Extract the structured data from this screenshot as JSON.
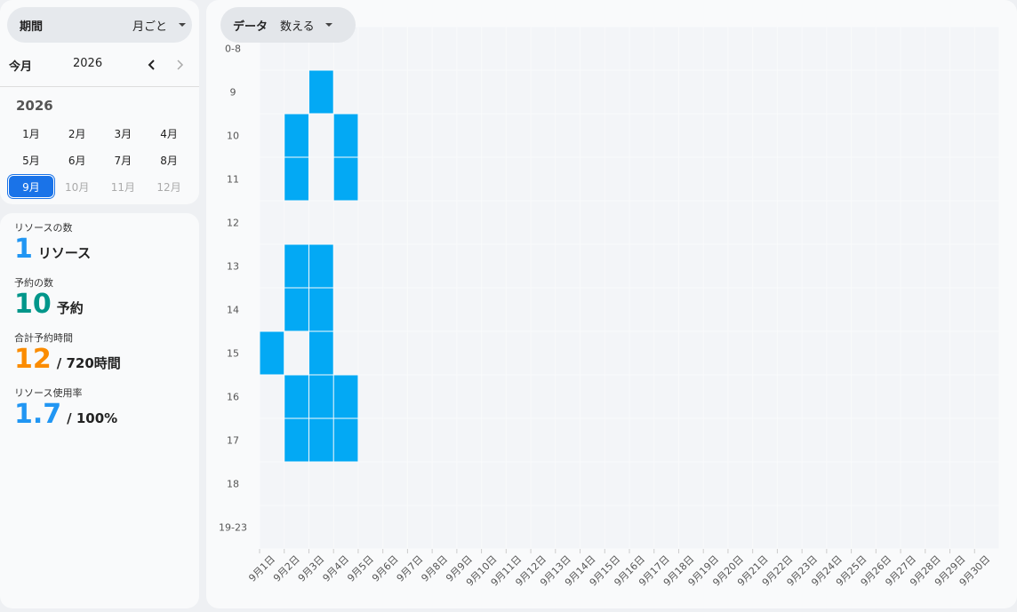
{
  "period": {
    "label": "期間",
    "value": "月ごと"
  },
  "nav": {
    "label": "今月",
    "year": "2026"
  },
  "calendar": {
    "year": "2026",
    "months": [
      {
        "label": "1月",
        "state": "normal"
      },
      {
        "label": "2月",
        "state": "normal"
      },
      {
        "label": "3月",
        "state": "normal"
      },
      {
        "label": "4月",
        "state": "normal"
      },
      {
        "label": "5月",
        "state": "normal"
      },
      {
        "label": "6月",
        "state": "normal"
      },
      {
        "label": "7月",
        "state": "normal"
      },
      {
        "label": "8月",
        "state": "normal"
      },
      {
        "label": "9月",
        "state": "selected"
      },
      {
        "label": "10月",
        "state": "disabled"
      },
      {
        "label": "11月",
        "state": "disabled"
      },
      {
        "label": "12月",
        "state": "disabled"
      }
    ]
  },
  "stats": [
    {
      "label": "リソースの数",
      "value": 1,
      "unit": "リソース",
      "color": "#2196f3"
    },
    {
      "label": "予約の数",
      "value": 10,
      "unit": "予約",
      "color": "#00968a"
    },
    {
      "label": "合計予約時間",
      "value": 12,
      "unit": "/ 720時間",
      "color": "#fb8c00"
    },
    {
      "label": "リソース使用率",
      "value": 1.7,
      "unit": "/ 100%",
      "color": "#2196f3"
    }
  ],
  "data_select": {
    "label": "データ",
    "value": "数える"
  },
  "heatmap": {
    "type": "heatmap",
    "color": "#03a9f4",
    "empty_color": "#f3f5f8",
    "rows": [
      "0-8",
      "9",
      "10",
      "11",
      "12",
      "13",
      "14",
      "15",
      "16",
      "17",
      "18",
      "19-23"
    ],
    "columns": [
      "9月1日",
      "9月2日",
      "9月3日",
      "9月4日",
      "9月5日",
      "9月6日",
      "9月7日",
      "9月8日",
      "9月9日",
      "9月10日",
      "9月11日",
      "9月12日",
      "9月13日",
      "9月14日",
      "9月15日",
      "9月16日",
      "9月17日",
      "9月18日",
      "9月19日",
      "9月20日",
      "9月21日",
      "9月22日",
      "9月23日",
      "9月24日",
      "9月25日",
      "9月26日",
      "9月27日",
      "9月28日",
      "9月29日",
      "9月30日"
    ],
    "values": [
      [
        0,
        0,
        0,
        0,
        0,
        0,
        0,
        0,
        0,
        0,
        0,
        0,
        0,
        0,
        0,
        0,
        0,
        0,
        0,
        0,
        0,
        0,
        0,
        0,
        0,
        0,
        0,
        0,
        0,
        0
      ],
      [
        0,
        0,
        1,
        0,
        0,
        0,
        0,
        0,
        0,
        0,
        0,
        0,
        0,
        0,
        0,
        0,
        0,
        0,
        0,
        0,
        0,
        0,
        0,
        0,
        0,
        0,
        0,
        0,
        0,
        0
      ],
      [
        0,
        1,
        0,
        1,
        0,
        0,
        0,
        0,
        0,
        0,
        0,
        0,
        0,
        0,
        0,
        0,
        0,
        0,
        0,
        0,
        0,
        0,
        0,
        0,
        0,
        0,
        0,
        0,
        0,
        0
      ],
      [
        0,
        1,
        0,
        1,
        0,
        0,
        0,
        0,
        0,
        0,
        0,
        0,
        0,
        0,
        0,
        0,
        0,
        0,
        0,
        0,
        0,
        0,
        0,
        0,
        0,
        0,
        0,
        0,
        0,
        0
      ],
      [
        0,
        0,
        0,
        0,
        0,
        0,
        0,
        0,
        0,
        0,
        0,
        0,
        0,
        0,
        0,
        0,
        0,
        0,
        0,
        0,
        0,
        0,
        0,
        0,
        0,
        0,
        0,
        0,
        0,
        0
      ],
      [
        0,
        1,
        1,
        0,
        0,
        0,
        0,
        0,
        0,
        0,
        0,
        0,
        0,
        0,
        0,
        0,
        0,
        0,
        0,
        0,
        0,
        0,
        0,
        0,
        0,
        0,
        0,
        0,
        0,
        0
      ],
      [
        0,
        1,
        1,
        0,
        0,
        0,
        0,
        0,
        0,
        0,
        0,
        0,
        0,
        0,
        0,
        0,
        0,
        0,
        0,
        0,
        0,
        0,
        0,
        0,
        0,
        0,
        0,
        0,
        0,
        0
      ],
      [
        1,
        0,
        1,
        0,
        0,
        0,
        0,
        0,
        0,
        0,
        0,
        0,
        0,
        0,
        0,
        0,
        0,
        0,
        0,
        0,
        0,
        0,
        0,
        0,
        0,
        0,
        0,
        0,
        0,
        0
      ],
      [
        0,
        1,
        1,
        1,
        0,
        0,
        0,
        0,
        0,
        0,
        0,
        0,
        0,
        0,
        0,
        0,
        0,
        0,
        0,
        0,
        0,
        0,
        0,
        0,
        0,
        0,
        0,
        0,
        0,
        0
      ],
      [
        0,
        1,
        1,
        1,
        0,
        0,
        0,
        0,
        0,
        0,
        0,
        0,
        0,
        0,
        0,
        0,
        0,
        0,
        0,
        0,
        0,
        0,
        0,
        0,
        0,
        0,
        0,
        0,
        0,
        0
      ],
      [
        0,
        0,
        0,
        0,
        0,
        0,
        0,
        0,
        0,
        0,
        0,
        0,
        0,
        0,
        0,
        0,
        0,
        0,
        0,
        0,
        0,
        0,
        0,
        0,
        0,
        0,
        0,
        0,
        0,
        0
      ],
      [
        0,
        0,
        0,
        0,
        0,
        0,
        0,
        0,
        0,
        0,
        0,
        0,
        0,
        0,
        0,
        0,
        0,
        0,
        0,
        0,
        0,
        0,
        0,
        0,
        0,
        0,
        0,
        0,
        0,
        0
      ]
    ]
  }
}
